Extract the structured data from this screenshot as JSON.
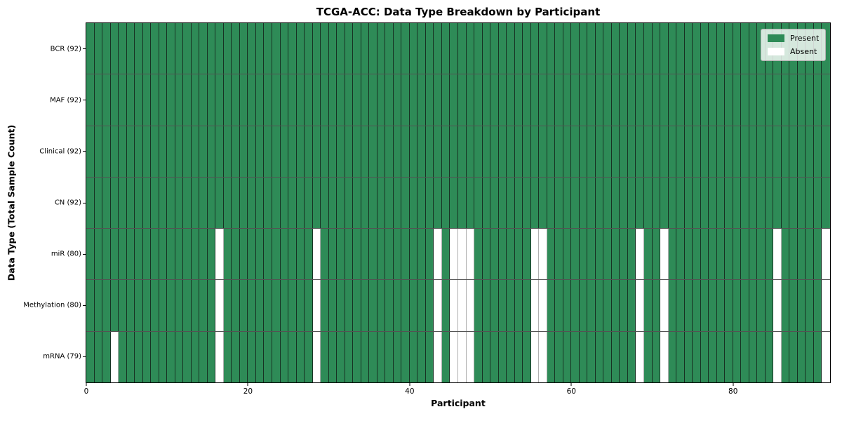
{
  "chart_data": {
    "type": "heatmap",
    "title": "TCGA-ACC: Data Type Breakdown by Participant",
    "xlabel": "Participant",
    "ylabel": "Data Type (Total Sample Count)",
    "x_range": [
      0,
      92
    ],
    "x_ticks": [
      0,
      20,
      40,
      60,
      80
    ],
    "n_participants": 92,
    "grid": true,
    "legend_position": "upper right",
    "rows": [
      {
        "label": "BCR (92)",
        "present_count": 92,
        "absent_participants": []
      },
      {
        "label": "MAF (92)",
        "present_count": 92,
        "absent_participants": []
      },
      {
        "label": "Clinical (92)",
        "present_count": 92,
        "absent_participants": []
      },
      {
        "label": "CN (92)",
        "present_count": 92,
        "absent_participants": []
      },
      {
        "label": "miR (80)",
        "present_count": 80,
        "absent_participants": [
          16,
          28,
          43,
          45,
          46,
          47,
          55,
          56,
          68,
          71,
          85,
          91
        ]
      },
      {
        "label": "Methylation (80)",
        "present_count": 80,
        "absent_participants": [
          16,
          28,
          43,
          45,
          46,
          47,
          55,
          56,
          68,
          71,
          85,
          91
        ]
      },
      {
        "label": "mRNA (79)",
        "present_count": 79,
        "absent_participants": [
          3,
          16,
          28,
          43,
          45,
          46,
          47,
          55,
          56,
          68,
          71,
          85,
          91
        ]
      }
    ],
    "legend": [
      {
        "label": "Present",
        "color": "#2e8b57"
      },
      {
        "label": "Absent",
        "color": "#ffffff"
      }
    ],
    "colors": {
      "present": "#2e8b57",
      "absent": "#ffffff",
      "gridline": "#1a1a1a",
      "plot_border": "#000000"
    }
  }
}
